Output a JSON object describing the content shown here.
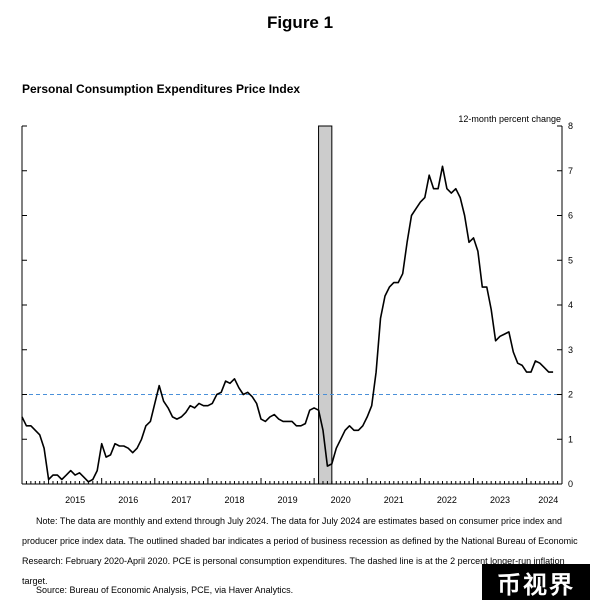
{
  "figure_title": "Figure 1",
  "chart_data": {
    "type": "line",
    "title": "Personal Consumption Expenditures Price Index",
    "ylabel": "12-month percent change",
    "ylim": [
      0,
      8
    ],
    "y_ticks": [
      0,
      1,
      2,
      3,
      4,
      5,
      6,
      7,
      8
    ],
    "y_axis_side": "right",
    "x_range": [
      "2014-07",
      "2024-09"
    ],
    "x_tick_labels": [
      "2015",
      "2016",
      "2017",
      "2018",
      "2019",
      "2020",
      "2021",
      "2022",
      "2023",
      "2024"
    ],
    "target_line": {
      "value": 2,
      "style": "dashed",
      "color": "#4a90d9"
    },
    "recession": {
      "start": "2020-02",
      "end": "2020-04",
      "color": "#cccccc"
    },
    "series": [
      {
        "line_color": "#000000",
        "x": [
          "2014-07",
          "2014-08",
          "2014-09",
          "2014-10",
          "2014-11",
          "2014-12",
          "2015-01",
          "2015-02",
          "2015-03",
          "2015-04",
          "2015-05",
          "2015-06",
          "2015-07",
          "2015-08",
          "2015-09",
          "2015-10",
          "2015-11",
          "2015-12",
          "2016-01",
          "2016-02",
          "2016-03",
          "2016-04",
          "2016-05",
          "2016-06",
          "2016-07",
          "2016-08",
          "2016-09",
          "2016-10",
          "2016-11",
          "2016-12",
          "2017-01",
          "2017-02",
          "2017-03",
          "2017-04",
          "2017-05",
          "2017-06",
          "2017-07",
          "2017-08",
          "2017-09",
          "2017-10",
          "2017-11",
          "2017-12",
          "2018-01",
          "2018-02",
          "2018-03",
          "2018-04",
          "2018-05",
          "2018-06",
          "2018-07",
          "2018-08",
          "2018-09",
          "2018-10",
          "2018-11",
          "2018-12",
          "2019-01",
          "2019-02",
          "2019-03",
          "2019-04",
          "2019-05",
          "2019-06",
          "2019-07",
          "2019-08",
          "2019-09",
          "2019-10",
          "2019-11",
          "2019-12",
          "2020-01",
          "2020-02",
          "2020-03",
          "2020-04",
          "2020-05",
          "2020-06",
          "2020-07",
          "2020-08",
          "2020-09",
          "2020-10",
          "2020-11",
          "2020-12",
          "2021-01",
          "2021-02",
          "2021-03",
          "2021-04",
          "2021-05",
          "2021-06",
          "2021-07",
          "2021-08",
          "2021-09",
          "2021-10",
          "2021-11",
          "2021-12",
          "2022-01",
          "2022-02",
          "2022-03",
          "2022-04",
          "2022-05",
          "2022-06",
          "2022-07",
          "2022-08",
          "2022-09",
          "2022-10",
          "2022-11",
          "2022-12",
          "2023-01",
          "2023-02",
          "2023-03",
          "2023-04",
          "2023-05",
          "2023-06",
          "2023-07",
          "2023-08",
          "2023-09",
          "2023-10",
          "2023-11",
          "2023-12",
          "2024-01",
          "2024-02",
          "2024-03",
          "2024-04",
          "2024-05",
          "2024-06",
          "2024-07"
        ],
        "values": [
          1.5,
          1.3,
          1.3,
          1.2,
          1.1,
          0.8,
          0.1,
          0.2,
          0.2,
          0.1,
          0.2,
          0.3,
          0.2,
          0.25,
          0.15,
          0.05,
          0.1,
          0.3,
          0.9,
          0.6,
          0.65,
          0.9,
          0.85,
          0.85,
          0.8,
          0.7,
          0.8,
          1.0,
          1.3,
          1.4,
          1.8,
          2.2,
          1.85,
          1.7,
          1.5,
          1.45,
          1.5,
          1.6,
          1.75,
          1.7,
          1.8,
          1.75,
          1.75,
          1.8,
          2.0,
          2.05,
          2.3,
          2.25,
          2.35,
          2.15,
          2.0,
          2.05,
          1.95,
          1.8,
          1.45,
          1.4,
          1.5,
          1.55,
          1.45,
          1.4,
          1.4,
          1.4,
          1.3,
          1.3,
          1.35,
          1.65,
          1.7,
          1.65,
          1.2,
          0.4,
          0.45,
          0.8,
          1.0,
          1.2,
          1.3,
          1.2,
          1.2,
          1.3,
          1.5,
          1.75,
          2.5,
          3.7,
          4.2,
          4.4,
          4.5,
          4.5,
          4.7,
          5.4,
          6.0,
          6.15,
          6.3,
          6.4,
          6.9,
          6.6,
          6.6,
          7.1,
          6.6,
          6.5,
          6.6,
          6.4,
          6.0,
          5.4,
          5.5,
          5.2,
          4.4,
          4.4,
          3.9,
          3.2,
          3.3,
          3.35,
          3.4,
          2.95,
          2.7,
          2.65,
          2.5,
          2.5,
          2.75,
          2.7,
          2.6,
          2.5,
          2.5
        ]
      }
    ]
  },
  "note": "Note: The data are monthly and extend through July 2024. The data for July 2024 are estimates based on consumer price index and producer price index data. The outlined shaded bar indicates a period of business recession as defined by the National Bureau of Economic Research: February 2020-April 2020. PCE is personal consumption expenditures. The dashed line is at the 2 percent longer-run inflation target.",
  "source": "Source: Bureau of Economic Analysis, PCE, via Haver Analytics.",
  "watermark": "币视界"
}
